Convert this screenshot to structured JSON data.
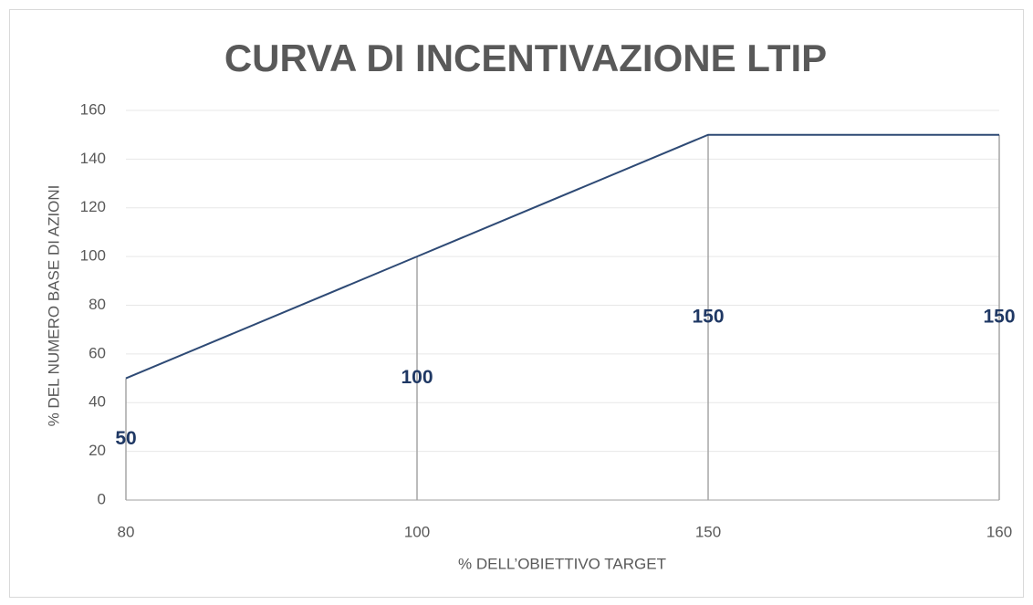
{
  "chart_data": {
    "type": "line",
    "title": "CURVA DI INCENTIVAZIONE LTIP",
    "x_label": "% DELL’OBIETTIVO TARGET",
    "y_label": "% DEL NUMERO BASE DI AZIONI",
    "categories": [
      "80",
      "100",
      "150",
      "160"
    ],
    "series": [
      {
        "name": "LTIP",
        "color": "#2e4a75",
        "values": [
          50,
          100,
          150,
          150
        ]
      }
    ],
    "drop_line_color": "#a6a6a6",
    "label_color": "#1f3864",
    "ylim": [
      0,
      160
    ],
    "yticks": [
      0,
      20,
      40,
      60,
      80,
      100,
      120,
      140,
      160
    ],
    "grid": true
  }
}
